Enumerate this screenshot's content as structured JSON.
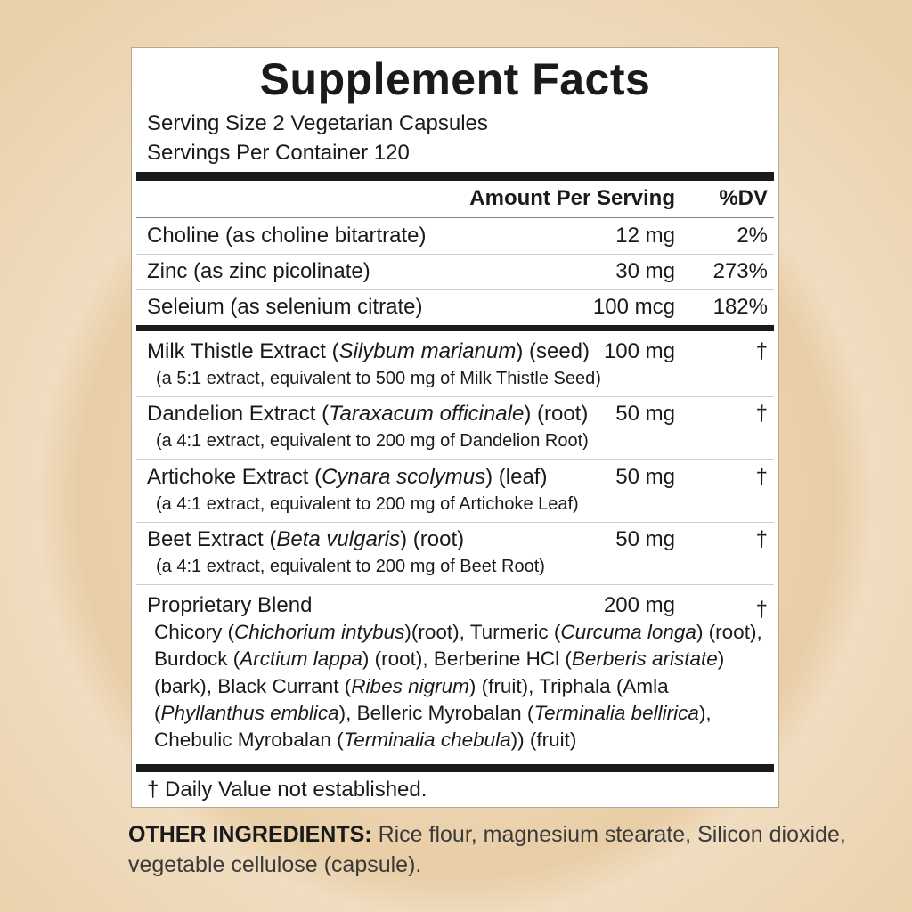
{
  "title": "Supplement Facts",
  "serving_size": "Serving Size 2 Vegetarian Capsules",
  "servings_per_container": "Servings Per Container 120",
  "header": {
    "amount": "Amount Per Serving",
    "dv": "%DV"
  },
  "nutrients": [
    {
      "name": "Choline (as choline bitartrate)",
      "amount": "12 mg",
      "dv": "2%"
    },
    {
      "name": "Zinc (as zinc picolinate)",
      "amount": "30 mg",
      "dv": "273%"
    },
    {
      "name": "Seleium (as selenium citrate)",
      "amount": "100 mcg",
      "dv": "182%"
    }
  ],
  "extracts": [
    {
      "name": "Milk Thistle Extract (",
      "latin": "Silybum marianum",
      "part": ") (seed)",
      "amount": "100 mg",
      "dv": "†",
      "note": "(a 5:1 extract, equivalent to 500 mg of Milk Thistle Seed)"
    },
    {
      "name": "Dandelion Extract (",
      "latin": "Taraxacum officinale",
      "part": ") (root)",
      "amount": "50 mg",
      "dv": "†",
      "note": "(a 4:1 extract, equivalent to 200 mg of Dandelion Root)"
    },
    {
      "name": "Artichoke Extract (",
      "latin": "Cynara scolymus",
      "part": ") (leaf)",
      "amount": "50 mg",
      "dv": "†",
      "note": "(a 4:1 extract, equivalent to 200 mg of Artichoke Leaf)"
    },
    {
      "name": "Beet Extract (",
      "latin": "Beta vulgaris",
      "part": ") (root)",
      "amount": "50 mg",
      "dv": "†",
      "note": "(a 4:1 extract, equivalent to 200 mg of Beet Root)"
    }
  ],
  "blend": {
    "name": "Proprietary Blend",
    "amount": "200 mg",
    "dv": "†",
    "parts": [
      "Chicory (",
      "Chichorium intybus",
      ")(root), Turmeric (",
      "Curcuma  longa",
      ") (root), Burdock (",
      "Arctium lappa",
      ") (root), Berberine HCl (",
      "Berberis aristate",
      ") (bark), Black Currant (",
      "Ribes nigrum",
      ") (fruit), Triphala (Amla (",
      "Phyllanthus emblica",
      "), Belleric Myrobalan (",
      "Terminalia bellirica",
      "), Chebulic Myrobalan (",
      "Terminalia chebula",
      "))  (fruit)"
    ]
  },
  "footnote": "† Daily Value not established.",
  "other": {
    "label": "OTHER INGREDIENTS:",
    "text": " Rice flour, magnesium stearate, Silicon dioxide, vegetable cellulose (capsule)."
  }
}
